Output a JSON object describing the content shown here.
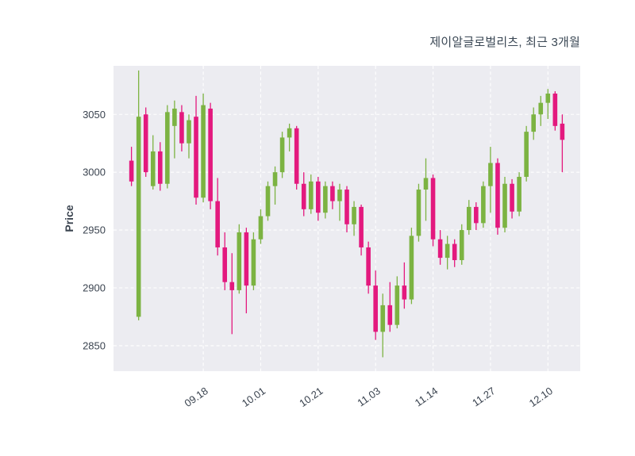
{
  "chart_data": {
    "type": "candlestick",
    "title": "제이알글로벌리츠, 최근 3개월",
    "ylabel": "Price",
    "ylim": [
      2828,
      3092
    ],
    "y_ticks": [
      2850,
      2900,
      2950,
      3000,
      3050
    ],
    "x_ticks": [
      {
        "index": 10,
        "label": "09.18"
      },
      {
        "index": 18,
        "label": "10.01"
      },
      {
        "index": 26,
        "label": "10.21"
      },
      {
        "index": 34,
        "label": "11.03"
      },
      {
        "index": 42,
        "label": "11.14"
      },
      {
        "index": 50,
        "label": "11.27"
      },
      {
        "index": 58,
        "label": "12.10"
      }
    ],
    "up_color": "#7cb342",
    "down_color": "#e3197e",
    "background": "#ececf1",
    "grid_color": "#ffffff",
    "text_color": "#3b4450",
    "legend_position": "none",
    "grid": true,
    "candles": [
      [
        3010,
        3022,
        2988,
        2992
      ],
      [
        2875,
        3088,
        2872,
        3048
      ],
      [
        3050,
        3056,
        2996,
        3000
      ],
      [
        2988,
        3032,
        2985,
        3018
      ],
      [
        3018,
        3026,
        2984,
        2990
      ],
      [
        2990,
        3058,
        2986,
        3052
      ],
      [
        3040,
        3062,
        3012,
        3055
      ],
      [
        3052,
        3058,
        3018,
        3025
      ],
      [
        3025,
        3050,
        3012,
        3045
      ],
      [
        3048,
        3066,
        2972,
        2978
      ],
      [
        2978,
        3068,
        2974,
        3058
      ],
      [
        3055,
        3060,
        2968,
        2975
      ],
      [
        2975,
        2995,
        2928,
        2935
      ],
      [
        2935,
        2948,
        2898,
        2905
      ],
      [
        2905,
        2930,
        2860,
        2898
      ],
      [
        2898,
        2955,
        2895,
        2948
      ],
      [
        2948,
        2952,
        2878,
        2902
      ],
      [
        2902,
        2948,
        2898,
        2942
      ],
      [
        2942,
        2968,
        2938,
        2962
      ],
      [
        2962,
        2992,
        2958,
        2988
      ],
      [
        2988,
        3005,
        2972,
        3000
      ],
      [
        3000,
        3035,
        2995,
        3030
      ],
      [
        3030,
        3042,
        3018,
        3038
      ],
      [
        3038,
        3040,
        2985,
        2990
      ],
      [
        2990,
        3000,
        2962,
        2968
      ],
      [
        2968,
        2998,
        2964,
        2992
      ],
      [
        2992,
        2996,
        2958,
        2965
      ],
      [
        2965,
        2992,
        2960,
        2988
      ],
      [
        2988,
        2992,
        2968,
        2975
      ],
      [
        2975,
        2990,
        2958,
        2985
      ],
      [
        2985,
        2988,
        2948,
        2955
      ],
      [
        2955,
        2975,
        2945,
        2970
      ],
      [
        2970,
        2972,
        2928,
        2935
      ],
      [
        2935,
        2940,
        2895,
        2902
      ],
      [
        2902,
        2915,
        2855,
        2862
      ],
      [
        2862,
        2895,
        2840,
        2885
      ],
      [
        2885,
        2905,
        2862,
        2868
      ],
      [
        2868,
        2910,
        2865,
        2902
      ],
      [
        2902,
        2922,
        2882,
        2890
      ],
      [
        2890,
        2952,
        2886,
        2945
      ],
      [
        2945,
        2990,
        2940,
        2985
      ],
      [
        2985,
        3012,
        2958,
        2995
      ],
      [
        2995,
        2998,
        2936,
        2942
      ],
      [
        2942,
        2950,
        2920,
        2926
      ],
      [
        2926,
        2945,
        2916,
        2938
      ],
      [
        2938,
        2942,
        2918,
        2924
      ],
      [
        2924,
        2955,
        2920,
        2950
      ],
      [
        2950,
        2976,
        2946,
        2970
      ],
      [
        2970,
        2974,
        2950,
        2956
      ],
      [
        2956,
        2992,
        2952,
        2988
      ],
      [
        2988,
        3022,
        2965,
        3008
      ],
      [
        3008,
        3012,
        2946,
        2952
      ],
      [
        2952,
        2996,
        2948,
        2990
      ],
      [
        2990,
        2994,
        2960,
        2966
      ],
      [
        2966,
        3000,
        2962,
        2996
      ],
      [
        2996,
        3040,
        2992,
        3035
      ],
      [
        3035,
        3056,
        3028,
        3050
      ],
      [
        3050,
        3066,
        3040,
        3060
      ],
      [
        3060,
        3072,
        3046,
        3068
      ],
      [
        3068,
        3070,
        3036,
        3040
      ],
      [
        3042,
        3050,
        3000,
        3028
      ]
    ]
  }
}
